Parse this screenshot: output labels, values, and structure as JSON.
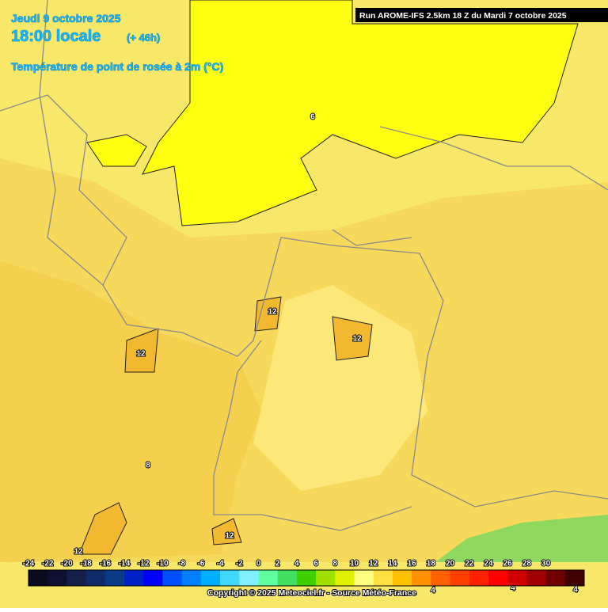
{
  "header": {
    "date": "Jeudi 9 octobre 2025",
    "time": "18:00 locale",
    "lead": "(+ 46h)",
    "parameter": "Température de point de rosée à 2m (°C)",
    "run": "Run AROME-IFS 2.5km 18 Z du Mardi 7 octobre 2025"
  },
  "map": {
    "contour_labels": [
      "6",
      "12",
      "12",
      "12",
      "12",
      "12",
      "8",
      "4",
      "4",
      "4"
    ]
  },
  "legend": {
    "labels": [
      -24,
      -22,
      -20,
      -18,
      -16,
      -14,
      -12,
      -10,
      -8,
      -6,
      -4,
      -2,
      0,
      2,
      4,
      6,
      8,
      10,
      12,
      14,
      16,
      18,
      20,
      22,
      24,
      26,
      28,
      30
    ],
    "colors": [
      "#0b0b20",
      "#101030",
      "#14204a",
      "#102a6a",
      "#0a3a8a",
      "#0020c8",
      "#0000ff",
      "#0050ff",
      "#0080ff",
      "#00b0ff",
      "#40d8ff",
      "#80f0ff",
      "#60ffa0",
      "#40e060",
      "#40d000",
      "#a0e000",
      "#e0f000",
      "#ffff80",
      "#ffe040",
      "#ffc000",
      "#ff9000",
      "#ff6000",
      "#ff4000",
      "#ff2000",
      "#ff0000",
      "#d00000",
      "#a00000",
      "#700000",
      "#400000"
    ]
  },
  "footer": {
    "copyright": "Copyright © 2025 Meteociel.fr - Source Météo-France"
  }
}
